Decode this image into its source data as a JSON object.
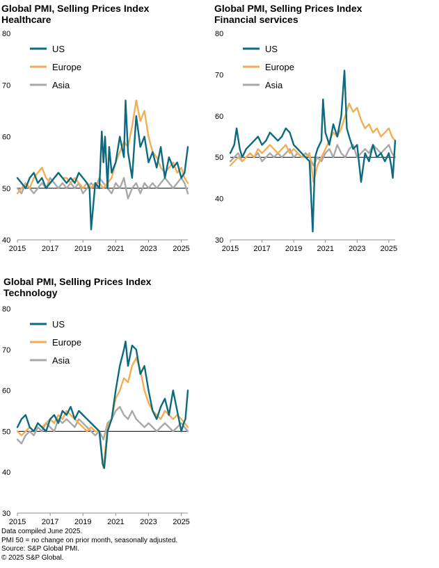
{
  "footnotes": [
    "Data compiled June 2025.",
    "PMI 50 = no change on prior month, seasonally adjusted.",
    "Source: S&P Global PMI.",
    "© 2025 S&P Global."
  ],
  "colors": {
    "US": "#0b6a80",
    "Europe": "#f2ad55",
    "Asia": "#a8a8a8",
    "reference": "#000000"
  },
  "chart_data": [
    {
      "type": "line",
      "title": [
        "Global PMI, Selling Prices Index",
        "Healthcare"
      ],
      "xlim": [
        2015,
        2025.4
      ],
      "ylim": [
        40,
        80
      ],
      "x_ticks": [
        2015,
        2017,
        2019,
        2021,
        2023,
        2025
      ],
      "y_ticks": [
        40,
        50,
        60,
        70,
        80
      ],
      "reference_line": 50,
      "legend": "top-left",
      "grid": false,
      "series": [
        {
          "name": "US",
          "x": [
            2015.0,
            2015.25,
            2015.5,
            2015.75,
            2016.0,
            2016.25,
            2016.5,
            2016.75,
            2017.0,
            2017.25,
            2017.5,
            2017.75,
            2018.0,
            2018.25,
            2018.5,
            2018.75,
            2019.0,
            2019.25,
            2019.4,
            2019.5,
            2019.75,
            2020.0,
            2020.15,
            2020.25,
            2020.35,
            2020.5,
            2020.6,
            2020.75,
            2021.0,
            2021.25,
            2021.5,
            2021.6,
            2021.75,
            2022.0,
            2022.25,
            2022.5,
            2022.75,
            2023.0,
            2023.25,
            2023.5,
            2023.75,
            2024.0,
            2024.25,
            2024.5,
            2024.75,
            2025.0,
            2025.2,
            2025.4
          ],
          "y": [
            52,
            51,
            50,
            52,
            53,
            51,
            52,
            50,
            51,
            52,
            53,
            52,
            51,
            52,
            51,
            53,
            52,
            51,
            50,
            42,
            51,
            50,
            61,
            55,
            60,
            50,
            58,
            53,
            55,
            60,
            56,
            67,
            57,
            52,
            64,
            58,
            60,
            55,
            57,
            54,
            58,
            52,
            56,
            54,
            55,
            52,
            53,
            58
          ]
        },
        {
          "name": "Europe",
          "x": [
            2015.0,
            2015.25,
            2015.5,
            2015.75,
            2016.0,
            2016.25,
            2016.5,
            2016.75,
            2017.0,
            2017.25,
            2017.5,
            2017.75,
            2018.0,
            2018.25,
            2018.5,
            2018.75,
            2019.0,
            2019.25,
            2019.5,
            2019.75,
            2020.0,
            2020.25,
            2020.5,
            2020.75,
            2021.0,
            2021.25,
            2021.5,
            2021.75,
            2022.0,
            2022.25,
            2022.5,
            2022.75,
            2023.0,
            2023.25,
            2023.5,
            2023.75,
            2024.0,
            2024.25,
            2024.5,
            2024.75,
            2025.0,
            2025.2,
            2025.4
          ],
          "y": [
            49,
            50,
            51,
            50,
            52,
            53,
            54,
            52,
            51,
            52,
            53,
            52,
            52,
            51,
            52,
            51,
            50,
            51,
            50,
            51,
            51,
            50,
            51,
            52,
            55,
            57,
            59,
            58,
            62,
            67,
            63,
            65,
            60,
            57,
            56,
            54,
            53,
            54,
            55,
            53,
            54,
            52,
            51
          ]
        },
        {
          "name": "Asia",
          "x": [
            2015.0,
            2015.25,
            2015.5,
            2015.75,
            2016.0,
            2016.25,
            2016.5,
            2016.75,
            2017.0,
            2017.25,
            2017.5,
            2017.75,
            2018.0,
            2018.25,
            2018.5,
            2018.75,
            2019.0,
            2019.25,
            2019.5,
            2019.75,
            2020.0,
            2020.25,
            2020.5,
            2020.75,
            2021.0,
            2021.25,
            2021.5,
            2021.75,
            2022.0,
            2022.25,
            2022.5,
            2022.75,
            2023.0,
            2023.25,
            2023.5,
            2023.75,
            2024.0,
            2024.25,
            2024.5,
            2024.75,
            2025.0,
            2025.2,
            2025.4
          ],
          "y": [
            50,
            49,
            51,
            50,
            49,
            50,
            51,
            50,
            52,
            51,
            50,
            51,
            50,
            51,
            50,
            51,
            49,
            50,
            51,
            50,
            52,
            51,
            50,
            49,
            51,
            50,
            52,
            48,
            50,
            51,
            49,
            51,
            50,
            51,
            50,
            51,
            52,
            51,
            50,
            51,
            52,
            51,
            49
          ]
        }
      ]
    },
    {
      "type": "line",
      "title": [
        "Global PMI, Selling Prices Index",
        "Financial services"
      ],
      "xlim": [
        2015,
        2025.4
      ],
      "ylim": [
        30,
        80
      ],
      "x_ticks": [
        2015,
        2017,
        2019,
        2021,
        2023,
        2025
      ],
      "y_ticks": [
        30,
        40,
        50,
        60,
        70,
        80
      ],
      "reference_line": 50,
      "legend": "top-left",
      "grid": false,
      "series": [
        {
          "name": "US",
          "x": [
            2015.0,
            2015.25,
            2015.4,
            2015.6,
            2015.75,
            2016.0,
            2016.25,
            2016.5,
            2016.75,
            2017.0,
            2017.25,
            2017.5,
            2017.75,
            2018.0,
            2018.25,
            2018.5,
            2018.75,
            2019.0,
            2019.25,
            2019.5,
            2019.75,
            2020.0,
            2020.2,
            2020.35,
            2020.5,
            2020.75,
            2020.85,
            2021.0,
            2021.25,
            2021.5,
            2021.75,
            2022.0,
            2022.2,
            2022.35,
            2022.5,
            2022.75,
            2023.0,
            2023.25,
            2023.5,
            2023.75,
            2024.0,
            2024.25,
            2024.5,
            2024.75,
            2025.0,
            2025.15,
            2025.25,
            2025.4
          ],
          "y": [
            51,
            53,
            57,
            52,
            50,
            52,
            53,
            54,
            55,
            53,
            54,
            56,
            55,
            54,
            55,
            57,
            56,
            53,
            52,
            51,
            50,
            49,
            32,
            50,
            52,
            54,
            64,
            56,
            53,
            58,
            55,
            60,
            71,
            57,
            55,
            52,
            53,
            44,
            51,
            49,
            53,
            50,
            51,
            49,
            51,
            48,
            45,
            54
          ]
        },
        {
          "name": "Europe",
          "x": [
            2015.0,
            2015.25,
            2015.5,
            2015.75,
            2016.0,
            2016.25,
            2016.5,
            2016.75,
            2017.0,
            2017.25,
            2017.5,
            2017.75,
            2018.0,
            2018.25,
            2018.5,
            2018.75,
            2019.0,
            2019.25,
            2019.5,
            2019.75,
            2020.0,
            2020.25,
            2020.5,
            2020.75,
            2021.0,
            2021.25,
            2021.5,
            2021.75,
            2022.0,
            2022.25,
            2022.5,
            2022.75,
            2023.0,
            2023.25,
            2023.5,
            2023.75,
            2024.0,
            2024.25,
            2024.5,
            2024.75,
            2025.0,
            2025.2,
            2025.4
          ],
          "y": [
            48,
            49,
            50,
            49,
            50,
            51,
            50,
            52,
            51,
            52,
            53,
            52,
            51,
            52,
            53,
            51,
            52,
            51,
            50,
            50,
            51,
            44,
            48,
            50,
            52,
            54,
            56,
            55,
            57,
            60,
            63,
            61,
            62,
            59,
            57,
            58,
            56,
            57,
            55,
            56,
            57,
            55,
            54
          ]
        },
        {
          "name": "Asia",
          "x": [
            2015.0,
            2015.25,
            2015.5,
            2015.75,
            2016.0,
            2016.25,
            2016.5,
            2016.75,
            2017.0,
            2017.25,
            2017.5,
            2017.75,
            2018.0,
            2018.25,
            2018.5,
            2018.75,
            2019.0,
            2019.25,
            2019.5,
            2019.75,
            2020.0,
            2020.25,
            2020.5,
            2020.75,
            2021.0,
            2021.25,
            2021.5,
            2021.75,
            2022.0,
            2022.25,
            2022.5,
            2022.75,
            2023.0,
            2023.25,
            2023.5,
            2023.75,
            2024.0,
            2024.25,
            2024.5,
            2024.75,
            2025.0,
            2025.2,
            2025.4
          ],
          "y": [
            49,
            50,
            51,
            49,
            50,
            51,
            50,
            51,
            49,
            50,
            51,
            50,
            51,
            50,
            51,
            52,
            50,
            51,
            50,
            51,
            50,
            48,
            50,
            49,
            51,
            52,
            50,
            53,
            51,
            50,
            52,
            53,
            50,
            51,
            52,
            51,
            53,
            52,
            51,
            52,
            53,
            51,
            50
          ]
        }
      ]
    },
    {
      "type": "line",
      "title": [
        "Global PMI, Selling Prices Index",
        "Technology"
      ],
      "xlim": [
        2015,
        2025.4
      ],
      "ylim": [
        30,
        80
      ],
      "x_ticks": [
        2015,
        2017,
        2019,
        2021,
        2023,
        2025
      ],
      "y_ticks": [
        30,
        40,
        50,
        60,
        70,
        80
      ],
      "reference_line": 50,
      "legend": "top-left",
      "grid": false,
      "series": [
        {
          "name": "US",
          "x": [
            2015.0,
            2015.25,
            2015.5,
            2015.75,
            2016.0,
            2016.25,
            2016.5,
            2016.75,
            2017.0,
            2017.25,
            2017.5,
            2017.75,
            2018.0,
            2018.25,
            2018.5,
            2018.75,
            2019.0,
            2019.25,
            2019.5,
            2019.75,
            2020.0,
            2020.2,
            2020.3,
            2020.5,
            2020.75,
            2021.0,
            2021.25,
            2021.5,
            2021.6,
            2021.75,
            2022.0,
            2022.25,
            2022.5,
            2022.75,
            2023.0,
            2023.25,
            2023.5,
            2023.75,
            2024.0,
            2024.25,
            2024.5,
            2024.75,
            2025.0,
            2025.15,
            2025.25,
            2025.4
          ],
          "y": [
            51,
            53,
            54,
            51,
            50,
            52,
            51,
            50,
            53,
            54,
            52,
            55,
            54,
            56,
            53,
            55,
            54,
            53,
            52,
            51,
            50,
            42,
            41,
            50,
            53,
            60,
            66,
            70,
            72,
            66,
            71,
            70,
            64,
            66,
            60,
            55,
            53,
            56,
            58,
            54,
            60,
            55,
            50,
            52,
            53,
            60
          ]
        },
        {
          "name": "Europe",
          "x": [
            2015.0,
            2015.25,
            2015.5,
            2015.75,
            2016.0,
            2016.25,
            2016.5,
            2016.75,
            2017.0,
            2017.25,
            2017.5,
            2017.75,
            2018.0,
            2018.25,
            2018.5,
            2018.75,
            2019.0,
            2019.25,
            2019.5,
            2019.75,
            2020.0,
            2020.25,
            2020.5,
            2020.75,
            2021.0,
            2021.25,
            2021.5,
            2021.75,
            2022.0,
            2022.25,
            2022.5,
            2022.75,
            2023.0,
            2023.25,
            2023.5,
            2023.75,
            2024.0,
            2024.25,
            2024.5,
            2024.75,
            2025.0,
            2025.2,
            2025.4
          ],
          "y": [
            50,
            49,
            50,
            51,
            50,
            52,
            51,
            52,
            53,
            52,
            54,
            53,
            55,
            54,
            53,
            52,
            51,
            50,
            51,
            50,
            50,
            41,
            51,
            53,
            58,
            60,
            63,
            62,
            66,
            68,
            65,
            60,
            57,
            55,
            54,
            53,
            55,
            54,
            53,
            54,
            53,
            52,
            51
          ]
        },
        {
          "name": "Asia",
          "x": [
            2015.0,
            2015.25,
            2015.5,
            2015.75,
            2016.0,
            2016.25,
            2016.5,
            2016.75,
            2017.0,
            2017.25,
            2017.5,
            2017.75,
            2018.0,
            2018.25,
            2018.5,
            2018.75,
            2019.0,
            2019.25,
            2019.5,
            2019.75,
            2020.0,
            2020.25,
            2020.5,
            2020.75,
            2021.0,
            2021.25,
            2021.5,
            2021.75,
            2022.0,
            2022.25,
            2022.5,
            2022.75,
            2023.0,
            2023.25,
            2023.5,
            2023.75,
            2024.0,
            2024.25,
            2024.5,
            2024.75,
            2025.0,
            2025.2,
            2025.4
          ],
          "y": [
            48,
            47,
            49,
            50,
            49,
            51,
            50,
            52,
            51,
            50,
            53,
            52,
            53,
            52,
            51,
            53,
            52,
            51,
            50,
            49,
            50,
            48,
            52,
            53,
            55,
            56,
            54,
            53,
            55,
            53,
            52,
            51,
            52,
            51,
            50,
            51,
            52,
            51,
            50,
            51,
            52,
            51,
            50
          ]
        }
      ]
    }
  ]
}
